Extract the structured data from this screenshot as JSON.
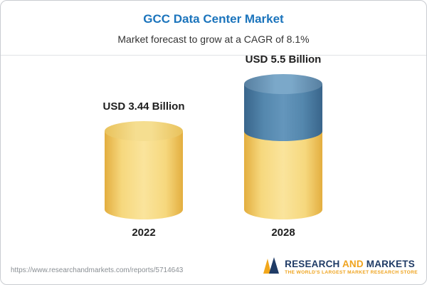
{
  "chart_data": {
    "type": "bar",
    "title": "GCC Data Center Market",
    "subtitle": "Market forecast to grow at a CAGR of 8.1%",
    "categories": [
      "2022",
      "2028"
    ],
    "values": [
      3.44,
      5.5
    ],
    "value_labels": [
      "USD 3.44 Billion",
      "USD 5.5 Billion"
    ],
    "unit": "USD Billion",
    "legend": "none",
    "grid": false,
    "colors": {
      "bar_2022": "#F2CF6B",
      "bar_2028_base": "#F2CF6B",
      "bar_2028_top": "#4E81A8",
      "title_accent": "#1B74BC"
    }
  },
  "footer": {
    "url": "https://www.researchandmarkets.com/reports/5714643",
    "logo": {
      "part1": "RESEARCH",
      "part2": "AND",
      "part3": "MARKETS",
      "tagline": "THE WORLD'S LARGEST MARKET RESEARCH STORE",
      "brand_navy": "#1F3B66",
      "brand_gold": "#EFA31D"
    }
  }
}
